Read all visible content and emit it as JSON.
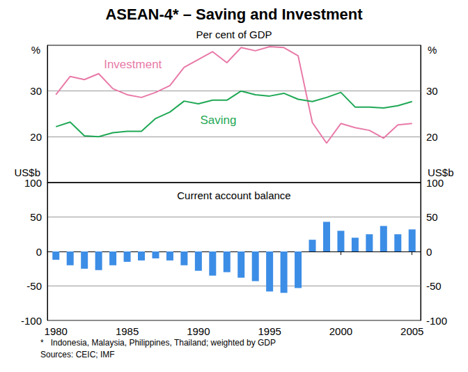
{
  "title": "ASEAN-4* – Saving and Investment",
  "subtitle": "Per cent of GDP",
  "footnotes": [
    "*   Indonesia, Malaysia, Philippines, Thailand; weighted by GDP",
    "Sources: CEIC; IMF"
  ],
  "chart_data": [
    {
      "type": "line",
      "y_label": "%",
      "x": [
        1980,
        1981,
        1982,
        1983,
        1984,
        1985,
        1986,
        1987,
        1988,
        1989,
        1990,
        1991,
        1992,
        1993,
        1994,
        1995,
        1996,
        1997,
        1998,
        1999,
        2000,
        2001,
        2002,
        2003,
        2004,
        2005
      ],
      "series": [
        {
          "name": "Investment",
          "color": "#e87aa8",
          "values": [
            29.2,
            33.2,
            32.5,
            33.8,
            30.5,
            29.2,
            28.6,
            29.7,
            31.2,
            35.2,
            36.9,
            38.6,
            36.2,
            39.5,
            38.8,
            39.7,
            39.5,
            37.7,
            23.1,
            18.6,
            22.9,
            22.0,
            21.4,
            19.7,
            22.6,
            22.9
          ]
        },
        {
          "name": "Saving",
          "color": "#1fa855",
          "values": [
            22.2,
            23.2,
            20.2,
            20.0,
            20.9,
            21.2,
            21.2,
            24.0,
            25.4,
            27.8,
            27.2,
            28.0,
            28.0,
            30.0,
            29.2,
            28.9,
            29.5,
            28.2,
            27.7,
            28.6,
            29.7,
            26.5,
            26.5,
            26.3,
            26.8,
            27.7
          ]
        }
      ],
      "annotations": [
        {
          "text": "Investment",
          "x": 1985.4,
          "y": 35.8,
          "color": "#e87aa8"
        },
        {
          "text": "Saving",
          "x": 1991.4,
          "y": 23.7,
          "color": "#1fa855"
        }
      ],
      "xlim": [
        1979.4,
        2005.6
      ],
      "xticks": [
        1980,
        1985,
        1990,
        1995,
        2000,
        2005
      ],
      "ylim": [
        10,
        40
      ],
      "yticks": [
        20,
        30
      ],
      "grid": true,
      "tick_labels": "y"
    },
    {
      "type": "bar",
      "title": "Current account balance",
      "y_label": "US$b",
      "x": [
        1980,
        1981,
        1982,
        1983,
        1984,
        1985,
        1986,
        1987,
        1988,
        1989,
        1990,
        1991,
        1992,
        1993,
        1994,
        1995,
        1996,
        1997,
        1998,
        1999,
        2000,
        2001,
        2002,
        2003,
        2004,
        2005
      ],
      "values": [
        -12,
        -20,
        -25,
        -27,
        -20,
        -15,
        -13,
        -10,
        -13,
        -20,
        -28,
        -35,
        -30,
        -38,
        -43,
        -58,
        -60,
        -53,
        17,
        43,
        30,
        20,
        25,
        37,
        25,
        32
      ],
      "color": "#3c8de6",
      "xlim": [
        1979.4,
        2005.6
      ],
      "xticks": [
        1980,
        1985,
        1990,
        1995,
        2000,
        2005
      ],
      "ylim": [
        -100,
        100
      ],
      "yticks": [
        -100,
        -50,
        0,
        50,
        100
      ],
      "grid": true
    }
  ]
}
